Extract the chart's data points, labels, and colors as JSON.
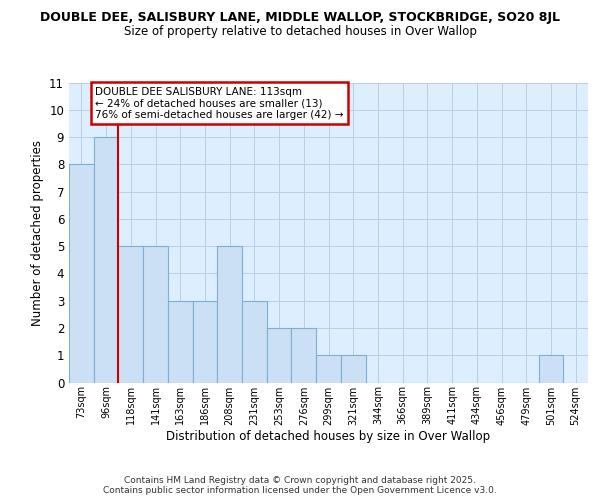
{
  "title1": "DOUBLE DEE, SALISBURY LANE, MIDDLE WALLOP, STOCKBRIDGE, SO20 8JL",
  "title2": "Size of property relative to detached houses in Over Wallop",
  "xlabel": "Distribution of detached houses by size in Over Wallop",
  "ylabel": "Number of detached properties",
  "categories": [
    "73sqm",
    "96sqm",
    "118sqm",
    "141sqm",
    "163sqm",
    "186sqm",
    "208sqm",
    "231sqm",
    "253sqm",
    "276sqm",
    "299sqm",
    "321sqm",
    "344sqm",
    "366sqm",
    "389sqm",
    "411sqm",
    "434sqm",
    "456sqm",
    "479sqm",
    "501sqm",
    "524sqm"
  ],
  "values": [
    8,
    9,
    5,
    5,
    3,
    3,
    5,
    3,
    2,
    2,
    1,
    1,
    0,
    0,
    0,
    0,
    0,
    0,
    0,
    1,
    0
  ],
  "bar_color": "#cce0f5",
  "bar_edge_color": "#7bafd4",
  "background_color": "#ddeeff",
  "red_line_x": 1.5,
  "annotation_text": "DOUBLE DEE SALISBURY LANE: 113sqm\n← 24% of detached houses are smaller (13)\n76% of semi-detached houses are larger (42) →",
  "annotation_box_color": "#ffffff",
  "annotation_edge_color": "#cc0000",
  "footer_text": "Contains HM Land Registry data © Crown copyright and database right 2025.\nContains public sector information licensed under the Open Government Licence v3.0.",
  "ylim_max": 11,
  "yticks": [
    0,
    1,
    2,
    3,
    4,
    5,
    6,
    7,
    8,
    9,
    10,
    11
  ]
}
